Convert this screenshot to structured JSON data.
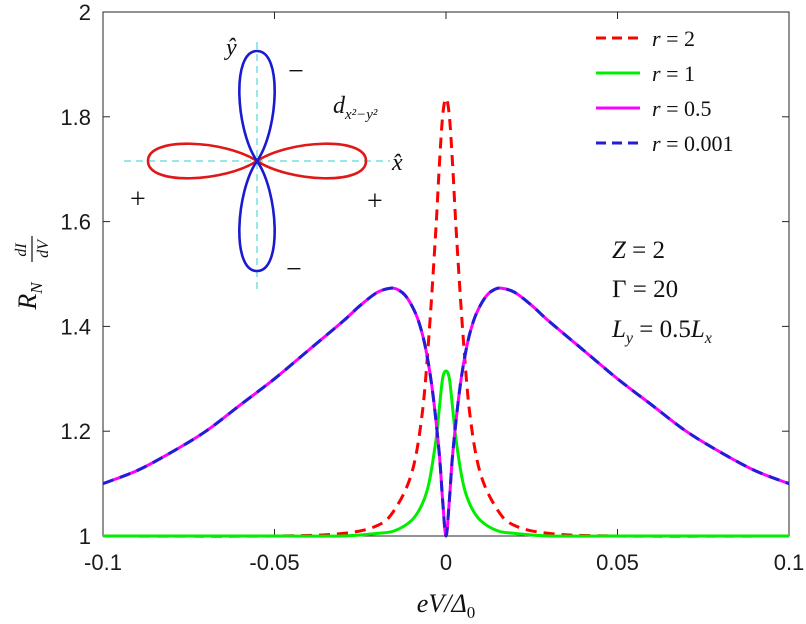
{
  "chart_data": {
    "type": "line",
    "xlabel": "eV/Δ0",
    "ylabel": "R_N dI/dV",
    "xlim": [
      -0.1,
      0.1
    ],
    "ylim": [
      1,
      2
    ],
    "xticks": [
      -0.1,
      -0.05,
      0,
      0.05,
      0.1
    ],
    "xtick_labels": [
      "-0.1",
      "-0.05",
      "0",
      "0.05",
      "0.1"
    ],
    "yticks": [
      1,
      1.2,
      1.4,
      1.6,
      1.8,
      2
    ],
    "ytick_labels": [
      "1",
      "1.2",
      "1.4",
      "1.6",
      "1.8",
      "2"
    ],
    "legend_position": "top-right",
    "series": [
      {
        "name": "r = 2",
        "label_var": "r",
        "label_val": "2",
        "color": "#ff0000",
        "dashed": true,
        "x": [
          -0.1,
          -0.05,
          -0.03,
          -0.02,
          -0.015,
          -0.01,
          -0.007,
          -0.005,
          -0.003,
          -0.002,
          -0.001,
          0,
          0.001,
          0.002,
          0.003,
          0.005,
          0.007,
          0.01,
          0.015,
          0.02,
          0.03,
          0.05,
          0.1
        ],
        "y": [
          1.0,
          1.0,
          1.005,
          1.02,
          1.05,
          1.12,
          1.23,
          1.38,
          1.58,
          1.7,
          1.8,
          1.835,
          1.8,
          1.7,
          1.58,
          1.38,
          1.23,
          1.12,
          1.05,
          1.02,
          1.005,
          1.0,
          1.0
        ]
      },
      {
        "name": "r = 1",
        "label_var": "r",
        "label_val": "1",
        "color": "#00ee00",
        "dashed": false,
        "x": [
          -0.1,
          -0.05,
          -0.03,
          -0.02,
          -0.015,
          -0.01,
          -0.007,
          -0.005,
          -0.003,
          -0.002,
          -0.001,
          0,
          0.001,
          0.002,
          0.003,
          0.005,
          0.007,
          0.01,
          0.015,
          0.02,
          0.03,
          0.05,
          0.1
        ],
        "y": [
          1.0,
          1.0,
          1.0,
          1.005,
          1.01,
          1.03,
          1.06,
          1.1,
          1.18,
          1.24,
          1.3,
          1.315,
          1.3,
          1.24,
          1.18,
          1.1,
          1.06,
          1.03,
          1.01,
          1.005,
          1.0,
          1.0,
          1.0
        ]
      },
      {
        "name": "r = 0.5",
        "label_var": "r",
        "label_val": "0.5",
        "color": "#ff00ff",
        "dashed": false,
        "x": [
          -0.1,
          -0.09,
          -0.08,
          -0.07,
          -0.06,
          -0.05,
          -0.04,
          -0.03,
          -0.025,
          -0.02,
          -0.016,
          -0.014,
          -0.012,
          -0.01,
          -0.008,
          -0.006,
          -0.004,
          -0.002,
          -0.001,
          0,
          0.001,
          0.002,
          0.004,
          0.006,
          0.008,
          0.01,
          0.012,
          0.014,
          0.016,
          0.02,
          0.025,
          0.03,
          0.04,
          0.05,
          0.06,
          0.07,
          0.08,
          0.09,
          0.1
        ],
        "y": [
          1.1,
          1.125,
          1.16,
          1.2,
          1.25,
          1.3,
          1.355,
          1.41,
          1.44,
          1.465,
          1.473,
          1.47,
          1.46,
          1.44,
          1.41,
          1.36,
          1.28,
          1.16,
          1.07,
          1.0,
          1.07,
          1.16,
          1.28,
          1.36,
          1.41,
          1.44,
          1.46,
          1.47,
          1.473,
          1.465,
          1.44,
          1.41,
          1.355,
          1.3,
          1.25,
          1.2,
          1.16,
          1.125,
          1.1
        ]
      },
      {
        "name": "r = 0.001",
        "label_var": "r",
        "label_val": "0.001",
        "color": "#1f1fd6",
        "dashed": true,
        "x": [
          -0.1,
          -0.09,
          -0.08,
          -0.07,
          -0.06,
          -0.05,
          -0.04,
          -0.03,
          -0.025,
          -0.02,
          -0.016,
          -0.014,
          -0.012,
          -0.01,
          -0.008,
          -0.006,
          -0.004,
          -0.002,
          -0.001,
          0,
          0.001,
          0.002,
          0.004,
          0.006,
          0.008,
          0.01,
          0.012,
          0.014,
          0.016,
          0.02,
          0.025,
          0.03,
          0.04,
          0.05,
          0.06,
          0.07,
          0.08,
          0.09,
          0.1
        ],
        "y": [
          1.1,
          1.125,
          1.16,
          1.2,
          1.25,
          1.3,
          1.355,
          1.41,
          1.44,
          1.465,
          1.473,
          1.47,
          1.46,
          1.44,
          1.41,
          1.36,
          1.28,
          1.16,
          1.07,
          1.0,
          1.07,
          1.16,
          1.28,
          1.36,
          1.41,
          1.44,
          1.46,
          1.47,
          1.473,
          1.465,
          1.44,
          1.41,
          1.355,
          1.3,
          1.25,
          1.2,
          1.16,
          1.125,
          1.1
        ]
      }
    ],
    "params": [
      {
        "var": "Z",
        "val": "2"
      },
      {
        "var": "Γ",
        "val": "20"
      },
      {
        "var": "L",
        "sub": "y",
        "val": "0.5",
        "valvar": "L",
        "valsub": "x"
      }
    ],
    "inset": {
      "y_axis": "ŷ",
      "x_axis": "x̂",
      "orbital": "d",
      "orbital_sub": "x²−y²",
      "signs": [
        "+",
        "+",
        "−",
        "−"
      ],
      "horizontal_lobe_color": "#e01818",
      "vertical_lobe_color": "#1a1ad0",
      "axis_color": "#33cccc"
    }
  }
}
